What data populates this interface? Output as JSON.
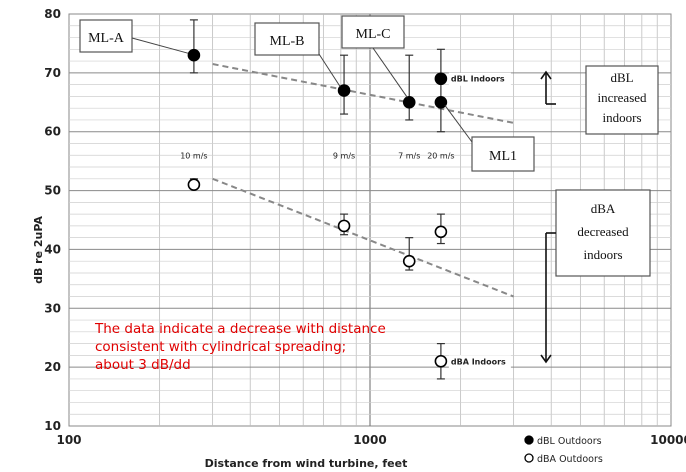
{
  "chart_data": {
    "type": "scatter",
    "title": "",
    "xlabel": "Distance from wind turbine, feet",
    "ylabel": "dB re 2uPA",
    "xscale": "log",
    "xlim": [
      100,
      10000
    ],
    "ylim": [
      10,
      80
    ],
    "grid": true,
    "x_ticks": [
      "100",
      "1000",
      "10000"
    ],
    "y_ticks": [
      "10",
      "20",
      "30",
      "40",
      "50",
      "60",
      "70",
      "80"
    ],
    "legend_placement": "bottom-right, below plot",
    "series": [
      {
        "name": "dBL Outdoors",
        "marker": "filled-circle",
        "color": "#000000",
        "points": [
          {
            "x": 260,
            "y": 73,
            "err_low": 70,
            "err_high": 79
          },
          {
            "x": 820,
            "y": 67,
            "err_low": 63,
            "err_high": 73
          },
          {
            "x": 1350,
            "y": 65,
            "err_low": 62,
            "err_high": 73
          },
          {
            "x": 1720,
            "y": 65,
            "err_low": 60,
            "err_high": 74
          }
        ]
      },
      {
        "name": "dBA Outdoors",
        "marker": "open-circle",
        "color": "#000000",
        "points": [
          {
            "x": 260,
            "y": 51,
            "err_low": 50.5,
            "err_high": 52
          },
          {
            "x": 820,
            "y": 44,
            "err_low": 42.5,
            "err_high": 46
          },
          {
            "x": 1350,
            "y": 38,
            "err_low": 36.5,
            "err_high": 42
          },
          {
            "x": 1720,
            "y": 43,
            "err_low": 41,
            "err_high": 46
          }
        ]
      },
      {
        "name": "dBL Indoors",
        "marker": "filled-circle",
        "color": "#000000",
        "points": [
          {
            "x": 1720,
            "y": 69
          }
        ]
      },
      {
        "name": "dBA Indoors",
        "marker": "open-circle",
        "color": "#000000",
        "points": [
          {
            "x": 1720,
            "y": 21,
            "err_low": 18,
            "err_high": 24
          }
        ]
      }
    ],
    "trendlines": [
      {
        "style": "dashed",
        "color": "#888888",
        "x": [
          300,
          3000
        ],
        "y": [
          71.5,
          61.5
        ]
      },
      {
        "style": "dashed",
        "color": "#888888",
        "x": [
          300,
          3000
        ],
        "y": [
          52,
          32
        ]
      }
    ],
    "point_labels": [
      {
        "text": "ML-A",
        "x": 260,
        "y": 73
      },
      {
        "text": "ML-B",
        "x": 820,
        "y": 67
      },
      {
        "text": "ML-C",
        "x": 1350,
        "y": 65
      },
      {
        "text": "ML1",
        "x": 1720,
        "y": 65
      }
    ],
    "wind_labels": [
      {
        "text": "10 m/s",
        "x": 260,
        "y": 56
      },
      {
        "text": "9 m/s",
        "x": 820,
        "y": 56
      },
      {
        "text": "7 m/s",
        "x": 1350,
        "y": 56
      },
      {
        "text": "20 m/s",
        "x": 1720,
        "y": 56
      }
    ],
    "inline_labels": [
      {
        "text": "dBL Indoors",
        "x": 1720,
        "y": 69
      },
      {
        "text": "dBA Indoors",
        "x": 1720,
        "y": 21
      }
    ],
    "side_boxes": [
      {
        "lines": [
          "dBL",
          "increased",
          "indoors"
        ],
        "arrow": "up"
      },
      {
        "lines": [
          "dBA",
          "decreased",
          "indoors"
        ],
        "arrow": "down"
      }
    ],
    "annotation": {
      "lines": [
        "The data indicate a decrease with distance",
        "consistent with cylindrical spreading;",
        "about 3 dB/dd"
      ],
      "color": "#e00000"
    }
  }
}
